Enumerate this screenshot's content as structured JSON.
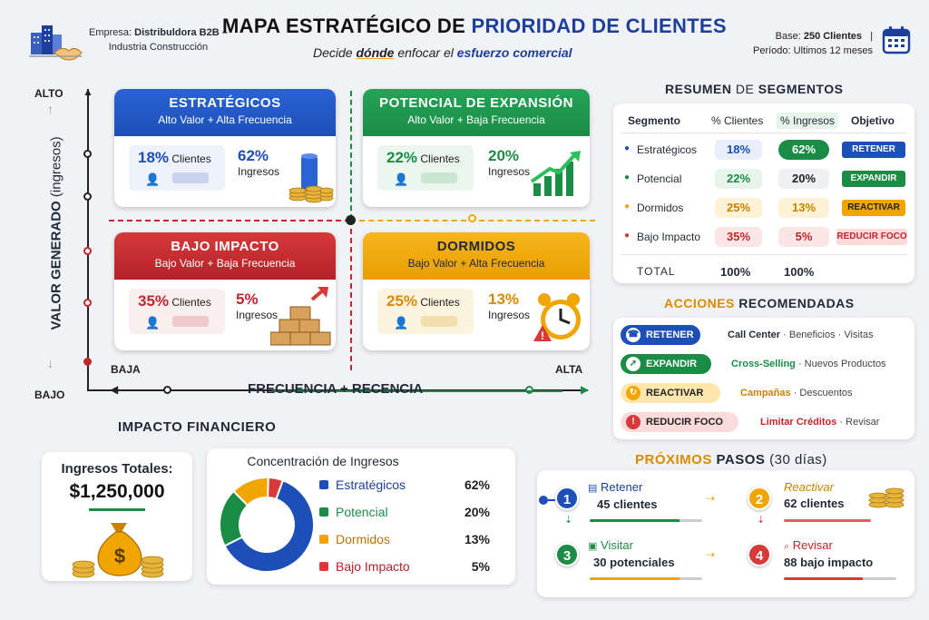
{
  "header": {
    "company_label": "Empresa:",
    "company_name": "Distribuldora B2B –",
    "company_sector": "Industria Construcción",
    "title_a": "MAPA ESTRATÉGICO",
    "title_b": " DE ",
    "title_c": "PRIORIDAD DE CLIENTES",
    "subtitle_a": "Decide ",
    "subtitle_b": "dónde",
    "subtitle_c": " enfocar el ",
    "subtitle_d": "esfuerzo comercial",
    "base_label": "Base: ",
    "base_value": "250 Clientes",
    "base_sep": "|",
    "period": "Período: Ultimos 12 meses"
  },
  "axes": {
    "y_top": "ALTO",
    "y_bottom": "BAJO",
    "y_label_a": "VALOR GENERADO",
    "y_label_b": " (ingresos)",
    "x_low": "BAJA",
    "x_high": "ALTA",
    "x_label_a": "FRECUENCIA",
    "x_label_b": " + ",
    "x_label_c": "RECENCIA"
  },
  "quadrants": {
    "estrategicos": {
      "title": "ESTRATÉGICOS",
      "subtitle": "Alto Valor + Alta Frecuencia",
      "clients_pct": "18%",
      "clients_label": "Clientes",
      "income_pct": "62%",
      "income_label": "Ingresos",
      "color": "#1d4fb8"
    },
    "potencial": {
      "title": "POTENCIAL DE EXPANSIÓN",
      "subtitle": "Alto Valor + Baja Frecuencia",
      "clients_pct": "22%",
      "clients_label": "Clientes",
      "income_pct": "20%",
      "income_label": "Ingresos",
      "color": "#1a8c46"
    },
    "bajo": {
      "title": "BAJO IMPACTO",
      "subtitle": "Bajo Valor + Baja Frecuencia",
      "clients_pct": "35%",
      "clients_label": "Clientes",
      "income_pct": "5%",
      "income_label": "Ingresos",
      "color": "#c0262d"
    },
    "dormidos": {
      "title": "DORMIDOS",
      "subtitle": "Bajo Valor + Alta Frecuencia",
      "clients_pct": "25%",
      "clients_label": "Clientes",
      "income_pct": "13%",
      "income_label": "Ingresos",
      "color": "#f0a500"
    }
  },
  "summary": {
    "title_a": "RESUMEN",
    "title_b": " DE ",
    "title_c": "SEGMENTOS",
    "headers": [
      "Segmento",
      "% Clientes",
      "% Ingresos",
      "Objetivo"
    ],
    "rows": [
      {
        "name": "Estratégicos",
        "clients": "18%",
        "income": "62%",
        "objective": "RETENER",
        "color": "#1d4fb8"
      },
      {
        "name": "Potencial",
        "clients": "22%",
        "income": "20%",
        "objective": "EXPANDIR",
        "color": "#1a8c46"
      },
      {
        "name": "Dormidos",
        "clients": "25%",
        "income": "13%",
        "objective": "REACTIVAR",
        "color": "#f0a500"
      },
      {
        "name": "Bajo Impacto",
        "clients": "35%",
        "income": "5%",
        "objective": "REDUCIR FOCO",
        "color": "#d63a3a"
      }
    ],
    "total_label": "TOTAL",
    "total_clients": "100%",
    "total_income": "100%"
  },
  "actions": {
    "title_a": "ACCIONES",
    "title_b": " RECOMENDADAS",
    "rows": [
      {
        "label": "RETENER",
        "strong": "Call Center",
        "rest": " · Beneficios · Visitas",
        "color": "#1d4fb8",
        "icon": "phone-icon"
      },
      {
        "label": "EXPANDIR",
        "strong": "Cross-Selling",
        "rest": " · Nuevos Productos",
        "color": "#1a8c46",
        "icon": "arrow-up-icon"
      },
      {
        "label": "REACTIVAR",
        "strong": "Campañas",
        "rest": " · Descuentos",
        "color": "#f0a500",
        "icon": "refresh-icon"
      },
      {
        "label": "REDUCIR FOCO",
        "strong": "Limitar Créditos",
        "rest": " · Revisar",
        "color": "#d63a3a",
        "icon": "warning-icon"
      }
    ]
  },
  "financial": {
    "title": "IMPACTO FINANCIERO",
    "total_label": "Ingresos Totales:",
    "total_value": "$1,250,000",
    "concentration_title": "Concentración de Ingresos"
  },
  "chart_data": {
    "type": "pie",
    "title": "Concentración de Ingresos",
    "categories": [
      "Estratégicos",
      "Potencial",
      "Dormidos",
      "Bajo Impacto"
    ],
    "values": [
      62,
      20,
      13,
      5
    ],
    "labels": [
      "62%",
      "20%",
      "13%",
      "5%"
    ],
    "colors": [
      "#1d4fb8",
      "#1a8c46",
      "#f0a500",
      "#d63a3a"
    ],
    "legend": "right"
  },
  "next_steps": {
    "title_a": "PRÓXIMOS",
    "title_b": " PASOS ",
    "title_c": "(30 días)",
    "steps": [
      {
        "num": "1",
        "action": "Retener",
        "target": "45 clientes",
        "color": "#1d4fb8"
      },
      {
        "num": "2",
        "action": "Reactivar",
        "target": "62 clientes",
        "color": "#f0a500"
      },
      {
        "num": "3",
        "action": "Visitar",
        "target": "30 potenciales",
        "color": "#1a8c46"
      },
      {
        "num": "4",
        "action": "Revisar",
        "target": "88 bajo impacto",
        "color": "#d63a3a"
      }
    ]
  }
}
